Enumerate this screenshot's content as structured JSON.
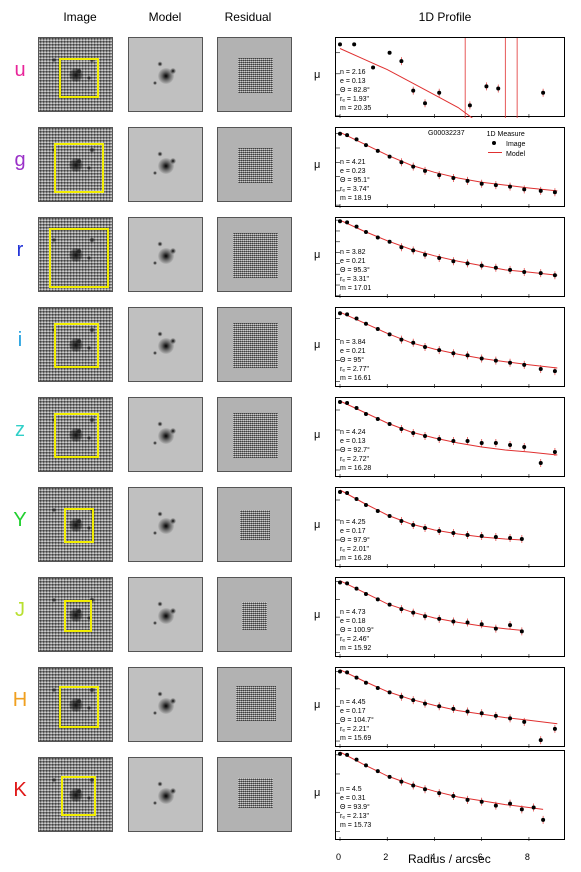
{
  "headers": {
    "image": "Image",
    "model": "Model",
    "residual": "Residual",
    "profile": "1D Profile"
  },
  "galaxy_id": "G00032237",
  "legend": {
    "title": "1D Measure",
    "image": "Image",
    "model": "Model"
  },
  "xlabel": "Radius / arcsec",
  "ylabel": "μ",
  "xticks": [
    "0",
    "2",
    "4",
    "6",
    "8"
  ],
  "colors": {
    "marker": "#000000",
    "model_line": "#e03030",
    "yellow_box": "#f2ee00"
  },
  "bands": [
    {
      "label": "u",
      "color": "#e8259a",
      "yticks": [
        "24",
        "25",
        "26",
        "27"
      ],
      "ymin": 23.3,
      "ymax": 27.1,
      "params": [
        "n = 2.16",
        "e = 0.13",
        "Θ = 82.8°",
        "rₑ = 1.93\"",
        "m = 20.35"
      ],
      "points": [
        [
          0,
          23.6
        ],
        [
          0.6,
          23.6
        ],
        [
          1.4,
          24.7
        ],
        [
          2.1,
          24.0
        ],
        [
          2.6,
          24.4
        ],
        [
          3.1,
          25.8
        ],
        [
          3.6,
          26.4
        ],
        [
          4.2,
          25.9
        ],
        [
          5.5,
          26.5
        ],
        [
          6.2,
          25.6
        ],
        [
          6.7,
          25.7
        ],
        [
          8.6,
          25.9
        ]
      ],
      "model": [
        [
          0,
          23.8
        ],
        [
          1,
          24.3
        ],
        [
          2,
          24.8
        ],
        [
          3,
          25.4
        ],
        [
          4,
          26.0
        ],
        [
          5,
          26.6
        ],
        [
          5.6,
          27.1
        ]
      ]
    },
    {
      "label": "g",
      "color": "#9a30c8",
      "yticks": [
        "22",
        "23",
        "24",
        "25",
        "26",
        "27"
      ],
      "ymin": 21.6,
      "ymax": 27.2,
      "params": [
        "n = 4.21",
        "e = 0.23",
        "Θ = 95.1°",
        "rₑ = 3.74\"",
        "m = 18.19"
      ],
      "points": [
        [
          0,
          22.0
        ],
        [
          0.3,
          22.1
        ],
        [
          0.7,
          22.4
        ],
        [
          1.1,
          22.8
        ],
        [
          1.6,
          23.2
        ],
        [
          2.1,
          23.6
        ],
        [
          2.6,
          24.0
        ],
        [
          3.1,
          24.3
        ],
        [
          3.6,
          24.6
        ],
        [
          4.2,
          24.9
        ],
        [
          4.8,
          25.1
        ],
        [
          5.4,
          25.3
        ],
        [
          6.0,
          25.5
        ],
        [
          6.6,
          25.6
        ],
        [
          7.2,
          25.7
        ],
        [
          7.8,
          25.9
        ],
        [
          8.5,
          26.0
        ],
        [
          9.1,
          26.1
        ]
      ],
      "model": [
        [
          0,
          21.9
        ],
        [
          1,
          22.7
        ],
        [
          2,
          23.5
        ],
        [
          3,
          24.2
        ],
        [
          4,
          24.7
        ],
        [
          5,
          25.1
        ],
        [
          6,
          25.4
        ],
        [
          7,
          25.6
        ],
        [
          8,
          25.8
        ],
        [
          9.2,
          26.0
        ]
      ]
    },
    {
      "label": "r",
      "color": "#2233d8",
      "yticks": [
        "20",
        "21",
        "22",
        "23",
        "24",
        "25",
        "26",
        "27"
      ],
      "ymin": 19.8,
      "ymax": 27.2,
      "params": [
        "n = 3.82",
        "e = 0.21",
        "Θ = 95.3°",
        "rₑ = 3.31\"",
        "m = 17.01"
      ],
      "points": [
        [
          0,
          20.1
        ],
        [
          0.3,
          20.2
        ],
        [
          0.7,
          20.6
        ],
        [
          1.1,
          21.1
        ],
        [
          1.6,
          21.6
        ],
        [
          2.1,
          22.0
        ],
        [
          2.6,
          22.5
        ],
        [
          3.1,
          22.8
        ],
        [
          3.6,
          23.2
        ],
        [
          4.2,
          23.5
        ],
        [
          4.8,
          23.8
        ],
        [
          5.4,
          24.0
        ],
        [
          6.0,
          24.2
        ],
        [
          6.6,
          24.4
        ],
        [
          7.2,
          24.6
        ],
        [
          7.8,
          24.8
        ],
        [
          8.5,
          24.9
        ],
        [
          9.1,
          25.1
        ]
      ],
      "model": [
        [
          0,
          20.0
        ],
        [
          1,
          21.0
        ],
        [
          2,
          21.9
        ],
        [
          3,
          22.7
        ],
        [
          4,
          23.3
        ],
        [
          5,
          23.8
        ],
        [
          6,
          24.2
        ],
        [
          7,
          24.6
        ],
        [
          8,
          24.8
        ],
        [
          9.2,
          25.1
        ]
      ]
    },
    {
      "label": "i",
      "color": "#22a0e0",
      "yticks": [
        "20",
        "22",
        "24",
        "26"
      ],
      "ymin": 19.0,
      "ymax": 26.6,
      "params": [
        "n = 3.84",
        "e = 0.21",
        "Θ = 95°",
        "rₑ = 2.77\"",
        "m = 16.61"
      ],
      "points": [
        [
          0,
          19.5
        ],
        [
          0.3,
          19.6
        ],
        [
          0.7,
          20.0
        ],
        [
          1.1,
          20.5
        ],
        [
          1.6,
          21.0
        ],
        [
          2.1,
          21.5
        ],
        [
          2.6,
          22.0
        ],
        [
          3.1,
          22.3
        ],
        [
          3.6,
          22.7
        ],
        [
          4.2,
          23.0
        ],
        [
          4.8,
          23.3
        ],
        [
          5.4,
          23.5
        ],
        [
          6.0,
          23.8
        ],
        [
          6.6,
          24.0
        ],
        [
          7.2,
          24.2
        ],
        [
          7.8,
          24.4
        ],
        [
          8.5,
          24.8
        ],
        [
          9.1,
          25.0
        ]
      ],
      "model": [
        [
          0,
          19.4
        ],
        [
          1,
          20.4
        ],
        [
          2,
          21.4
        ],
        [
          3,
          22.3
        ],
        [
          4,
          22.9
        ],
        [
          5,
          23.4
        ],
        [
          6,
          23.8
        ],
        [
          7,
          24.1
        ],
        [
          8,
          24.4
        ],
        [
          9.2,
          24.7
        ]
      ]
    },
    {
      "label": "z",
      "color": "#30d0c8",
      "yticks": [
        "20",
        "22",
        "24",
        "26"
      ],
      "ymin": 18.8,
      "ymax": 26.8,
      "params": [
        "n = 4.24",
        "e = 0.13",
        "Θ = 92.7°",
        "rₑ = 2.72\"",
        "m = 16.28"
      ],
      "points": [
        [
          0,
          19.2
        ],
        [
          0.3,
          19.3
        ],
        [
          0.7,
          19.8
        ],
        [
          1.1,
          20.4
        ],
        [
          1.6,
          20.9
        ],
        [
          2.1,
          21.4
        ],
        [
          2.6,
          21.9
        ],
        [
          3.1,
          22.3
        ],
        [
          3.6,
          22.6
        ],
        [
          4.2,
          22.9
        ],
        [
          4.8,
          23.1
        ],
        [
          5.4,
          23.1
        ],
        [
          6.0,
          23.3
        ],
        [
          6.6,
          23.3
        ],
        [
          7.2,
          23.5
        ],
        [
          7.8,
          23.7
        ],
        [
          8.5,
          25.3
        ],
        [
          9.1,
          24.2
        ]
      ],
      "model": [
        [
          0,
          19.1
        ],
        [
          1,
          20.2
        ],
        [
          2,
          21.3
        ],
        [
          3,
          22.2
        ],
        [
          4,
          22.8
        ],
        [
          5,
          23.3
        ],
        [
          6,
          23.7
        ],
        [
          7,
          24.0
        ],
        [
          8,
          24.2
        ],
        [
          9.2,
          24.5
        ]
      ]
    },
    {
      "label": "Y",
      "color": "#22d030",
      "yticks": [
        "20",
        "22",
        "24",
        "26"
      ],
      "ymin": 18.8,
      "ymax": 26.8,
      "params": [
        "n = 4.25",
        "e = 0.17",
        "Θ = 97.9°",
        "rₑ = 2.01\"",
        "m = 16.28"
      ],
      "points": [
        [
          0,
          19.2
        ],
        [
          0.3,
          19.3
        ],
        [
          0.7,
          19.9
        ],
        [
          1.1,
          20.5
        ],
        [
          1.6,
          21.1
        ],
        [
          2.1,
          21.6
        ],
        [
          2.6,
          22.1
        ],
        [
          3.1,
          22.5
        ],
        [
          3.6,
          22.8
        ],
        [
          4.2,
          23.1
        ],
        [
          4.8,
          23.3
        ],
        [
          5.4,
          23.5
        ],
        [
          6.0,
          23.6
        ],
        [
          6.6,
          23.7
        ],
        [
          7.2,
          23.8
        ],
        [
          7.7,
          23.9
        ]
      ],
      "model": [
        [
          0,
          19.0
        ],
        [
          1,
          20.3
        ],
        [
          2,
          21.5
        ],
        [
          3,
          22.4
        ],
        [
          4,
          23.0
        ],
        [
          5,
          23.4
        ],
        [
          6,
          23.7
        ],
        [
          7,
          23.9
        ],
        [
          7.7,
          24.0
        ]
      ]
    },
    {
      "label": "J",
      "color": "#b8e030",
      "yticks": [
        "18",
        "20",
        "22",
        "24",
        "26"
      ],
      "ymin": 17.6,
      "ymax": 26.6,
      "params": [
        "n = 4.73",
        "e = 0.18",
        "Θ = 100.9°",
        "rₑ = 2.46\"",
        "m = 15.92"
      ],
      "points": [
        [
          0,
          18.1
        ],
        [
          0.3,
          18.2
        ],
        [
          0.7,
          18.8
        ],
        [
          1.1,
          19.4
        ],
        [
          1.6,
          20.0
        ],
        [
          2.1,
          20.6
        ],
        [
          2.6,
          21.1
        ],
        [
          3.1,
          21.5
        ],
        [
          3.6,
          21.9
        ],
        [
          4.2,
          22.2
        ],
        [
          4.8,
          22.5
        ],
        [
          5.4,
          22.6
        ],
        [
          6.0,
          22.8
        ],
        [
          6.6,
          23.3
        ],
        [
          7.2,
          22.9
        ],
        [
          7.7,
          23.6
        ]
      ],
      "model": [
        [
          0,
          17.9
        ],
        [
          1,
          19.2
        ],
        [
          2,
          20.5
        ],
        [
          3,
          21.4
        ],
        [
          4,
          22.1
        ],
        [
          5,
          22.6
        ],
        [
          6,
          23.0
        ],
        [
          7,
          23.3
        ],
        [
          7.7,
          23.5
        ]
      ]
    },
    {
      "label": "H",
      "color": "#f0a020",
      "yticks": [
        "18",
        "20",
        "22",
        "24",
        "26"
      ],
      "ymin": 17.6,
      "ymax": 26.8,
      "params": [
        "n = 4.45",
        "e = 0.17",
        "Θ = 104.7°",
        "rₑ = 2.21\"",
        "m = 15.69"
      ],
      "points": [
        [
          0,
          18.0
        ],
        [
          0.3,
          18.1
        ],
        [
          0.7,
          18.7
        ],
        [
          1.1,
          19.3
        ],
        [
          1.6,
          19.9
        ],
        [
          2.1,
          20.4
        ],
        [
          2.6,
          20.9
        ],
        [
          3.1,
          21.3
        ],
        [
          3.6,
          21.7
        ],
        [
          4.2,
          22.0
        ],
        [
          4.8,
          22.3
        ],
        [
          5.4,
          22.6
        ],
        [
          6.0,
          22.8
        ],
        [
          6.6,
          23.1
        ],
        [
          7.2,
          23.4
        ],
        [
          7.8,
          23.8
        ],
        [
          8.5,
          25.9
        ],
        [
          9.1,
          24.6
        ]
      ],
      "model": [
        [
          0,
          17.8
        ],
        [
          1,
          19.1
        ],
        [
          2,
          20.3
        ],
        [
          3,
          21.2
        ],
        [
          4,
          21.9
        ],
        [
          5,
          22.5
        ],
        [
          6,
          22.9
        ],
        [
          7,
          23.3
        ],
        [
          8,
          23.6
        ],
        [
          9.2,
          24.0
        ]
      ]
    },
    {
      "label": "K",
      "color": "#e01818",
      "yticks": [
        "18",
        "20",
        "22",
        "24",
        "26"
      ],
      "ymin": 17.6,
      "ymax": 27.0,
      "params": [
        "n = 4.5",
        "e = 0.31",
        "Θ = 93.9°",
        "rₑ = 2.13\"",
        "m = 15.73"
      ],
      "points": [
        [
          0,
          17.9
        ],
        [
          0.3,
          18.0
        ],
        [
          0.7,
          18.5
        ],
        [
          1.1,
          19.1
        ],
        [
          1.6,
          19.7
        ],
        [
          2.1,
          20.3
        ],
        [
          2.6,
          20.8
        ],
        [
          3.1,
          21.2
        ],
        [
          3.6,
          21.6
        ],
        [
          4.2,
          22.0
        ],
        [
          4.8,
          22.3
        ],
        [
          5.4,
          22.7
        ],
        [
          6.0,
          22.9
        ],
        [
          6.6,
          23.3
        ],
        [
          7.2,
          23.1
        ],
        [
          7.7,
          23.7
        ],
        [
          8.2,
          23.5
        ],
        [
          8.6,
          24.8
        ]
      ],
      "model": [
        [
          0,
          17.7
        ],
        [
          1,
          19.0
        ],
        [
          2,
          20.2
        ],
        [
          3,
          21.1
        ],
        [
          4,
          21.8
        ],
        [
          5,
          22.4
        ],
        [
          6,
          22.8
        ],
        [
          7,
          23.2
        ],
        [
          8,
          23.5
        ],
        [
          8.6,
          23.7
        ]
      ]
    }
  ]
}
